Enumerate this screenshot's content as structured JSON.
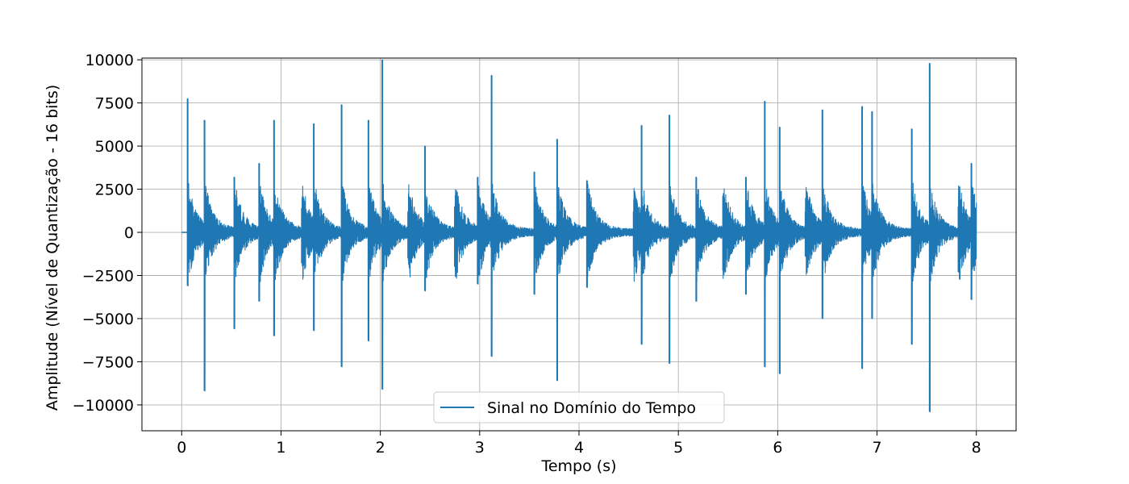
{
  "chart_data": {
    "type": "line",
    "title": "",
    "xlabel": "Tempo (s)",
    "ylabel": "Amplitude (Nível de Quantização - 16 bits)",
    "xlim": [
      -0.4,
      8.4
    ],
    "ylim": [
      -11500,
      10100
    ],
    "xticks": [
      0,
      1,
      2,
      3,
      4,
      5,
      6,
      7,
      8
    ],
    "yticks": [
      -10000,
      -7500,
      -5000,
      -2500,
      0,
      2500,
      5000,
      7500,
      10000
    ],
    "ytick_labels": [
      "−10000",
      "−7500",
      "−5000",
      "−2500",
      "0",
      "2500",
      "5000",
      "7500",
      "10000"
    ],
    "grid": true,
    "legend_position": "lower center",
    "series": [
      {
        "name": "Sinal no Domínio do Tempo",
        "color": "#1f77b4",
        "x_range": [
          0,
          8
        ],
        "envelope_note_free": true,
        "onsets": [
          {
            "t": 0.06,
            "peak_pos": 7750,
            "peak_neg": -3100
          },
          {
            "t": 0.23,
            "peak_pos": 6500,
            "peak_neg": -9200
          },
          {
            "t": 0.53,
            "peak_pos": 3200,
            "peak_neg": -5600
          },
          {
            "t": 0.78,
            "peak_pos": 4000,
            "peak_neg": -4000
          },
          {
            "t": 0.93,
            "peak_pos": 6500,
            "peak_neg": -6000
          },
          {
            "t": 1.21,
            "peak_pos": 1400,
            "peak_neg": -1800
          },
          {
            "t": 1.33,
            "peak_pos": 6300,
            "peak_neg": -5700
          },
          {
            "t": 1.61,
            "peak_pos": 7400,
            "peak_neg": -7800
          },
          {
            "t": 1.88,
            "peak_pos": 6500,
            "peak_neg": -6300
          },
          {
            "t": 2.02,
            "peak_pos": 10000,
            "peak_neg": -9100
          },
          {
            "t": 2.28,
            "peak_pos": 1200,
            "peak_neg": -1500
          },
          {
            "t": 2.45,
            "peak_pos": 5000,
            "peak_neg": -3400
          },
          {
            "t": 2.75,
            "peak_pos": 1500,
            "peak_neg": -2000
          },
          {
            "t": 2.98,
            "peak_pos": 3200,
            "peak_neg": -3000
          },
          {
            "t": 3.12,
            "peak_pos": 9100,
            "peak_neg": -7200
          },
          {
            "t": 3.55,
            "peak_pos": 3500,
            "peak_neg": -3600
          },
          {
            "t": 3.78,
            "peak_pos": 5400,
            "peak_neg": -8600
          },
          {
            "t": 4.08,
            "peak_pos": 3000,
            "peak_neg": -3200
          },
          {
            "t": 4.55,
            "peak_pos": 1200,
            "peak_neg": -1400
          },
          {
            "t": 4.63,
            "peak_pos": 6200,
            "peak_neg": -6500
          },
          {
            "t": 4.91,
            "peak_pos": 6800,
            "peak_neg": -7600
          },
          {
            "t": 5.18,
            "peak_pos": 3200,
            "peak_neg": -4000
          },
          {
            "t": 5.45,
            "peak_pos": 2100,
            "peak_neg": -2200
          },
          {
            "t": 5.68,
            "peak_pos": 3200,
            "peak_neg": -3600
          },
          {
            "t": 5.87,
            "peak_pos": 7600,
            "peak_neg": -7800
          },
          {
            "t": 6.02,
            "peak_pos": 6100,
            "peak_neg": -8200
          },
          {
            "t": 6.28,
            "peak_pos": 1200,
            "peak_neg": -1400
          },
          {
            "t": 6.45,
            "peak_pos": 7100,
            "peak_neg": -5000
          },
          {
            "t": 6.85,
            "peak_pos": 7300,
            "peak_neg": -7900
          },
          {
            "t": 6.95,
            "peak_pos": 7000,
            "peak_neg": -5000
          },
          {
            "t": 7.35,
            "peak_pos": 6000,
            "peak_neg": -6500
          },
          {
            "t": 7.53,
            "peak_pos": 9800,
            "peak_neg": -10400
          },
          {
            "t": 7.82,
            "peak_pos": 1500,
            "peak_neg": -2300
          },
          {
            "t": 7.95,
            "peak_pos": 4000,
            "peak_neg": -3900
          }
        ]
      }
    ]
  }
}
